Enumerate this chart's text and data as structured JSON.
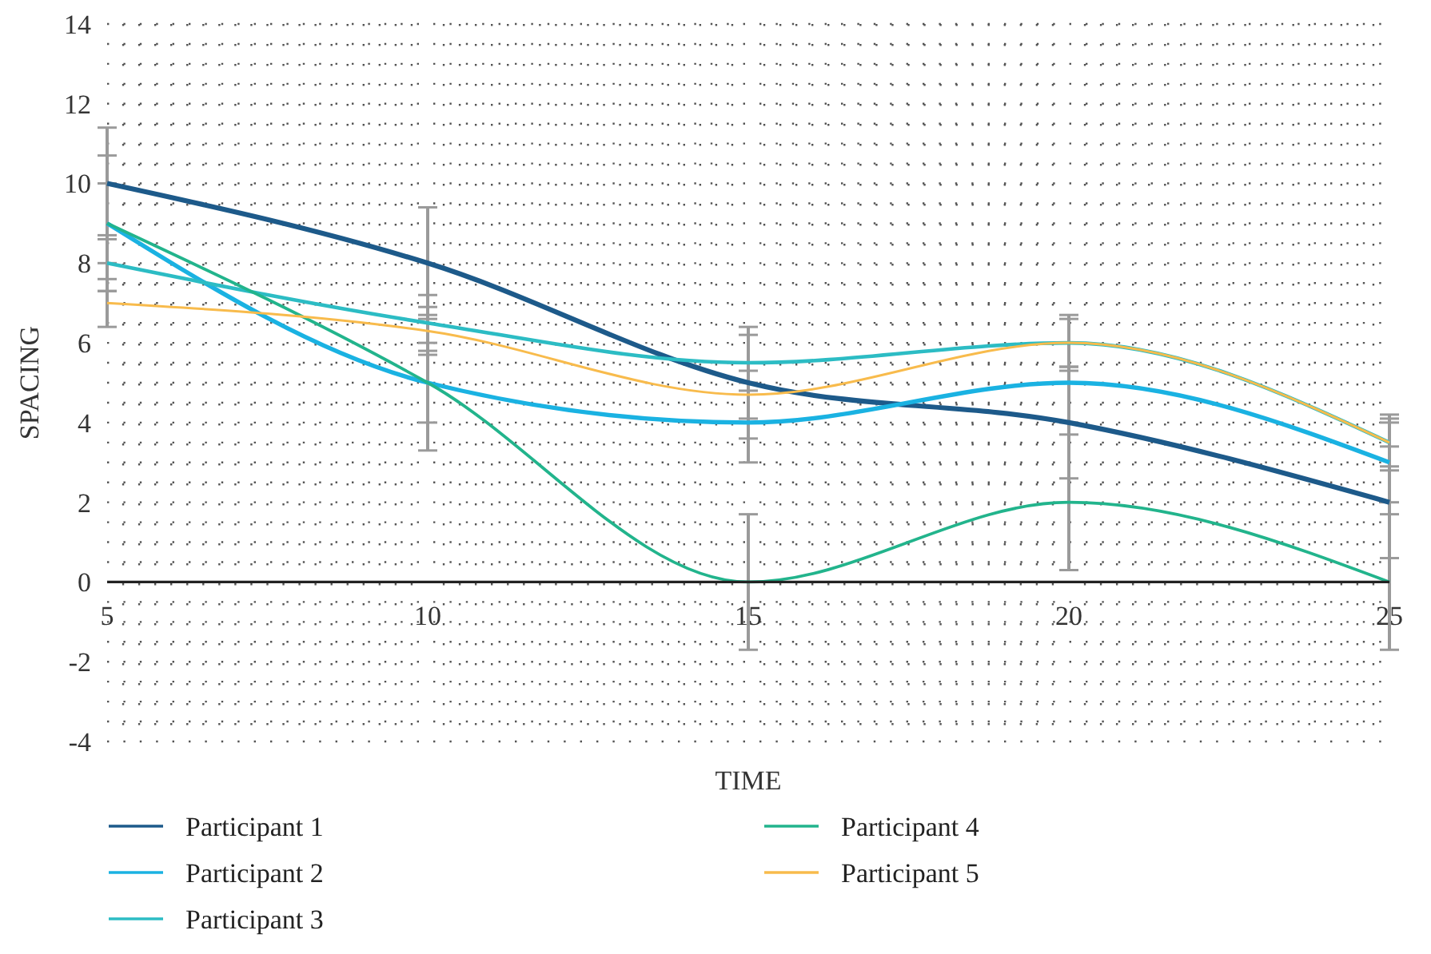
{
  "chart_data": {
    "type": "line",
    "xlabel": "TIME",
    "ylabel": "SPACING",
    "x": [
      5,
      10,
      15,
      20,
      25
    ],
    "xlim": [
      5,
      25
    ],
    "xticks": [
      5,
      10,
      15,
      20,
      25
    ],
    "ylim": [
      -4,
      14
    ],
    "yticks": [
      -4,
      -2,
      0,
      2,
      4,
      6,
      8,
      10,
      12,
      14
    ],
    "grid": true,
    "line_style": "solid",
    "marker": "none",
    "legend": "bottom",
    "series": [
      {
        "name": "Participant 1",
        "color": "#1d5a8a",
        "values": [
          10,
          8,
          5,
          4,
          2
        ],
        "errors": [
          1.4,
          1.4,
          1.4,
          1.4,
          1.4
        ]
      },
      {
        "name": "Participant 2",
        "color": "#1ab2e2",
        "values": [
          9,
          5,
          4,
          5,
          3
        ],
        "errors": [
          1,
          1,
          1,
          1,
          1
        ]
      },
      {
        "name": "Participant 3",
        "color": "#2cbcc4",
        "values": [
          8,
          6.5,
          5.5,
          6,
          3.5
        ],
        "errors": [
          0.7,
          0.7,
          0.7,
          0.7,
          0.7
        ]
      },
      {
        "name": "Participant 4",
        "color": "#22b48c",
        "values": [
          9,
          5,
          0,
          2,
          0
        ],
        "errors": [
          1.7,
          1.7,
          1.7,
          1.7,
          1.7
        ]
      },
      {
        "name": "Participant 5",
        "color": "#f8bb4c",
        "values": [
          7,
          6.3,
          4.7,
          6,
          3.5
        ],
        "errors": [
          0.6,
          0.6,
          0.6,
          0.6,
          0.6
        ]
      }
    ]
  }
}
